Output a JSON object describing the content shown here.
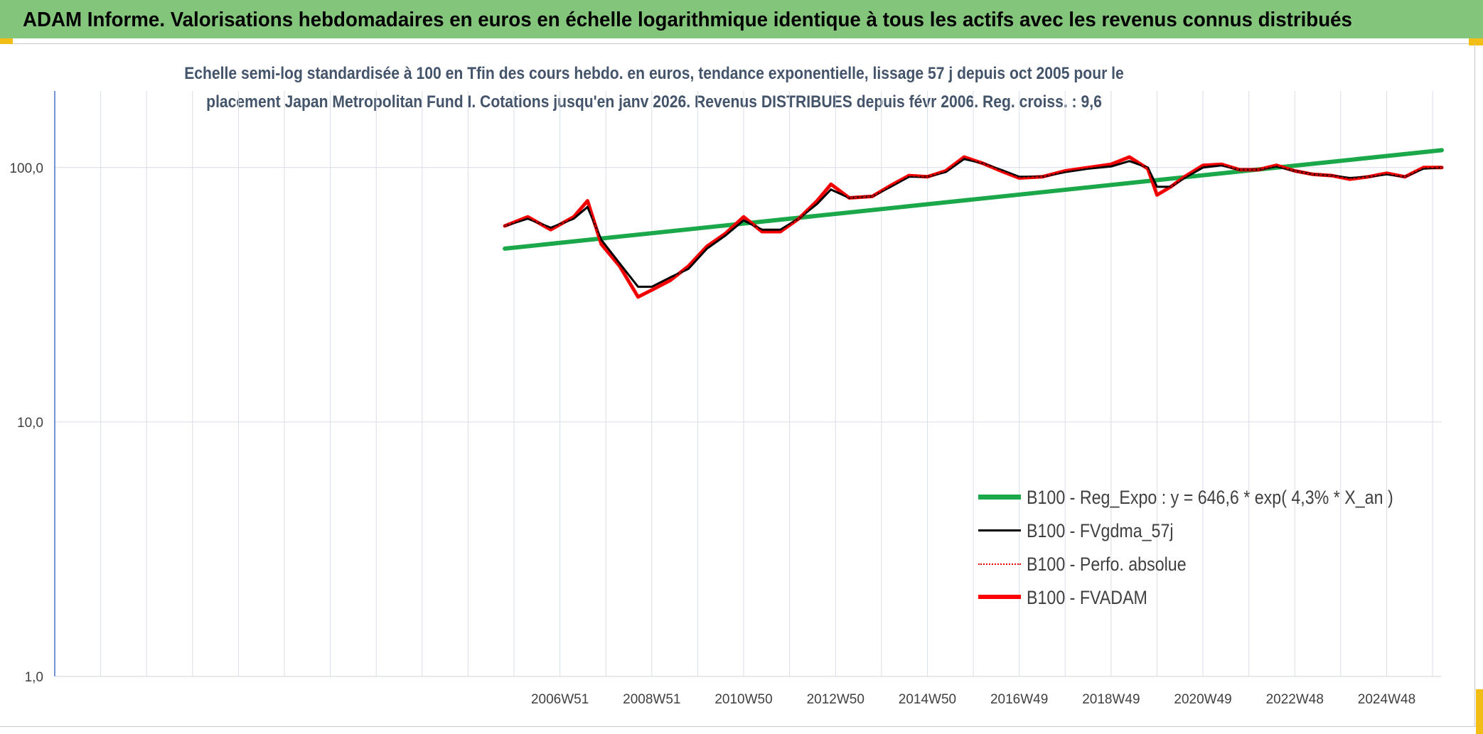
{
  "header": {
    "title": "ADAM Informe. Valorisations hebdomadaires en euros en échelle logarithmique identique à tous les actifs avec les revenus connus distribués"
  },
  "chart_data": {
    "type": "line",
    "title_line1": "Echelle semi-log standardisée à 100 en Tfin des cours hebdo. en euros, tendance exponentielle, lissage 57 j depuis oct 2005 pour le",
    "title_line2": "placement Japan Metropolitan Fund I. Cotations jusqu'en janv 2026. Revenus DISTRIBUES depuis févr 2006. Reg. croiss. : 9,6",
    "y_scale": "log",
    "ylim": [
      1,
      200
    ],
    "y_ticks": [
      {
        "value": 1,
        "label": "1,0"
      },
      {
        "value": 10,
        "label": "10,0"
      },
      {
        "value": 100,
        "label": "100,0"
      }
    ],
    "x_range": [
      1996.0,
      2026.2
    ],
    "x_tick_labels": [
      {
        "x": 2007.0,
        "label": "2006W51"
      },
      {
        "x": 2009.0,
        "label": "2008W51"
      },
      {
        "x": 2011.0,
        "label": "2010W50"
      },
      {
        "x": 2013.0,
        "label": "2012W50"
      },
      {
        "x": 2015.0,
        "label": "2014W50"
      },
      {
        "x": 2017.0,
        "label": "2016W49"
      },
      {
        "x": 2019.0,
        "label": "2018W49"
      },
      {
        "x": 2021.0,
        "label": "2020W49"
      },
      {
        "x": 2023.0,
        "label": "2022W48"
      },
      {
        "x": 2025.0,
        "label": "2024W48"
      }
    ],
    "grid": true,
    "legend_position": "bottom-right",
    "series": [
      {
        "name": "B100 - Reg_Expo : y = 646,6 * exp( 4,3% *  X_an )",
        "color": "#1aa84a",
        "style": "solid",
        "x": [
          2005.8,
          2026.2
        ],
        "values": [
          48,
          117
        ]
      },
      {
        "name": "B100 - FVgdma_57j",
        "color": "#000000",
        "style": "solid",
        "x": [
          2005.8,
          2006.3,
          2006.8,
          2007.3,
          2007.6,
          2007.9,
          2008.3,
          2008.7,
          2009.0,
          2009.4,
          2009.8,
          2010.2,
          2010.6,
          2011.0,
          2011.4,
          2011.8,
          2012.2,
          2012.6,
          2012.9,
          2013.3,
          2013.8,
          2014.2,
          2014.6,
          2015.0,
          2015.4,
          2015.8,
          2016.2,
          2016.6,
          2017.0,
          2017.5,
          2018.0,
          2018.5,
          2019.0,
          2019.4,
          2019.8,
          2020.0,
          2020.3,
          2020.6,
          2021.0,
          2021.4,
          2021.8,
          2022.2,
          2022.6,
          2023.0,
          2023.4,
          2023.8,
          2024.2,
          2024.6,
          2025.0,
          2025.4,
          2025.8,
          2026.2
        ],
        "values": [
          59,
          63,
          58,
          63,
          70,
          52,
          42,
          34,
          34,
          37,
          40,
          48,
          54,
          62,
          57,
          57,
          63,
          72,
          82,
          76,
          77,
          84,
          92,
          92,
          96,
          108,
          104,
          98,
          92,
          92,
          96,
          99,
          101,
          106,
          100,
          84,
          84,
          91,
          100,
          102,
          98,
          98,
          101,
          97,
          94,
          93,
          91,
          92,
          94,
          92,
          99,
          100
        ]
      },
      {
        "name": "B100 - Perfo. absolue",
        "color": "#e00000",
        "style": "dotted",
        "x": [
          2005.8,
          2006.3,
          2006.8,
          2007.3,
          2007.6,
          2007.9,
          2008.3,
          2008.7,
          2009.0,
          2009.4,
          2009.8,
          2010.2,
          2010.6,
          2011.0,
          2011.4,
          2011.8,
          2012.2,
          2012.6,
          2012.9,
          2013.3,
          2013.8,
          2014.2,
          2014.6,
          2015.0,
          2015.4,
          2015.8,
          2016.2,
          2016.6,
          2017.0,
          2017.5,
          2018.0,
          2018.5,
          2019.0,
          2019.4,
          2019.8,
          2020.0,
          2020.3,
          2020.6,
          2021.0,
          2021.4,
          2021.8,
          2022.2,
          2022.6,
          2023.0,
          2023.4,
          2023.8,
          2024.2,
          2024.6,
          2025.0,
          2025.4,
          2025.8,
          2026.2
        ],
        "values": [
          59,
          64,
          57,
          64,
          74,
          50,
          41,
          31,
          33,
          36,
          41,
          49,
          55,
          64,
          56,
          56,
          63,
          74,
          86,
          76,
          77,
          85,
          93,
          92,
          97,
          110,
          104,
          97,
          91,
          92,
          97,
          100,
          103,
          110,
          99,
          78,
          84,
          92,
          102,
          103,
          98,
          98,
          102,
          97,
          94,
          93,
          90,
          92,
          95,
          92,
          100,
          100
        ]
      },
      {
        "name": "B100 - FVADAM",
        "color": "#ff0000",
        "style": "solid",
        "x": [
          2005.8,
          2006.3,
          2006.8,
          2007.3,
          2007.6,
          2007.9,
          2008.3,
          2008.7,
          2009.0,
          2009.4,
          2009.8,
          2010.2,
          2010.6,
          2011.0,
          2011.4,
          2011.8,
          2012.2,
          2012.6,
          2012.9,
          2013.3,
          2013.8,
          2014.2,
          2014.6,
          2015.0,
          2015.4,
          2015.8,
          2016.2,
          2016.6,
          2017.0,
          2017.5,
          2018.0,
          2018.5,
          2019.0,
          2019.4,
          2019.8,
          2020.0,
          2020.3,
          2020.6,
          2021.0,
          2021.4,
          2021.8,
          2022.2,
          2022.6,
          2023.0,
          2023.4,
          2023.8,
          2024.2,
          2024.6,
          2025.0,
          2025.4,
          2025.8,
          2026.2
        ],
        "values": [
          59,
          64,
          57,
          64,
          74,
          50,
          41,
          31,
          33,
          36,
          41,
          49,
          55,
          64,
          56,
          56,
          63,
          74,
          86,
          76,
          77,
          85,
          93,
          92,
          97,
          110,
          104,
          97,
          91,
          92,
          97,
          100,
          103,
          110,
          99,
          78,
          84,
          92,
          102,
          103,
          98,
          98,
          102,
          97,
          94,
          93,
          90,
          92,
          95,
          92,
          100,
          100
        ]
      }
    ]
  }
}
